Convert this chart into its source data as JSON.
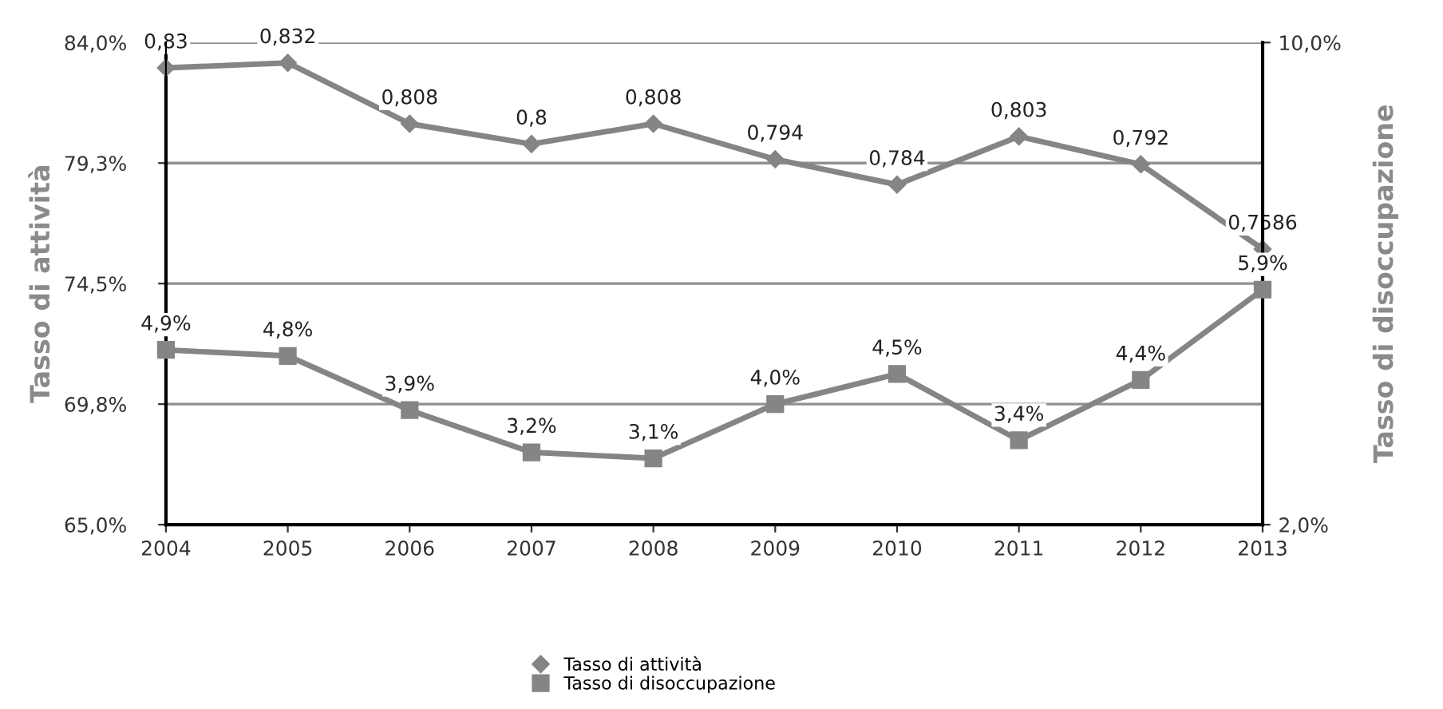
{
  "chart_data": {
    "type": "line",
    "ylabel": "Tasso di attività",
    "y2label": "Tasso di disoccupazione",
    "categories": [
      "2004",
      "2005",
      "2006",
      "2007",
      "2008",
      "2009",
      "2010",
      "2011",
      "2012",
      "2013"
    ],
    "series": [
      {
        "name": "Tasso di attività",
        "color": "#858585",
        "marker": "diamond",
        "values": [
          0.83,
          0.832,
          0.808,
          0.8,
          0.808,
          0.794,
          0.784,
          0.803,
          0.792,
          0.7586
        ],
        "value_labels": [
          "0,83",
          "0,832",
          "0,808",
          "0,8",
          "0,808",
          "0,794",
          "0,784",
          "0,803",
          "0,792",
          "0,7586"
        ]
      },
      {
        "name": "Tasso di disoccupazione",
        "color": "#858585",
        "marker": "square",
        "axis": "y2",
        "values": [
          4.9,
          4.8,
          3.9,
          3.2,
          3.1,
          4.0,
          4.5,
          3.4,
          4.4,
          5.9
        ],
        "value_labels": [
          "4,9%",
          "4,8%",
          "3,9%",
          "3,2%",
          "3,1%",
          "4,0%",
          "4,5%",
          "3,4%",
          "4,4%",
          "5,9%"
        ]
      }
    ],
    "ylim": [
      0.65,
      0.84
    ],
    "yticks": [
      {
        "value": 0.65,
        "label": "65,0%"
      },
      {
        "value": 0.6975,
        "label": "69,8%"
      },
      {
        "value": 0.745,
        "label": "74,5%"
      },
      {
        "value": 0.7925,
        "label": "79,3%"
      },
      {
        "value": 0.84,
        "label": "84,0%"
      }
    ],
    "y2lim": [
      2.0,
      10.0
    ],
    "y2ticks": [
      {
        "value": 2.0,
        "label": "2,0%"
      },
      {
        "value": 10.0,
        "label": "10,0%"
      }
    ],
    "grid": "y",
    "legend": "bottom",
    "line_style": "solid"
  }
}
